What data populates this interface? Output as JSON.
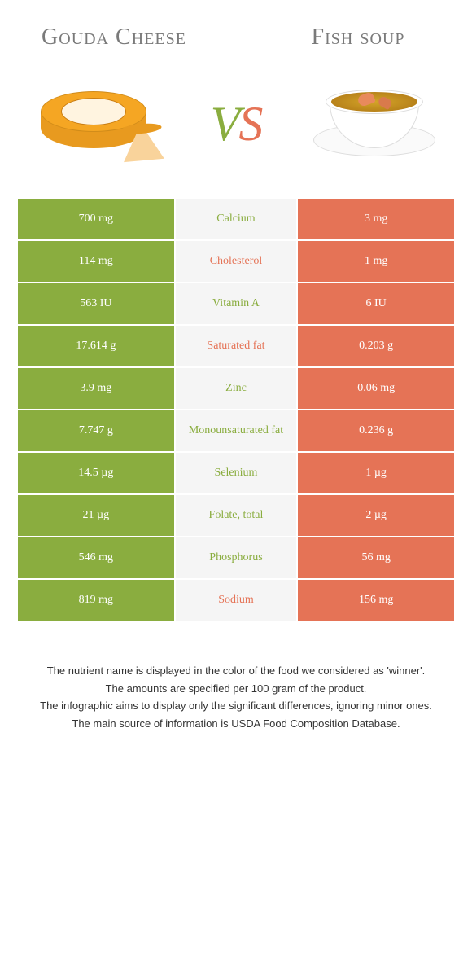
{
  "left": {
    "title": "Gouda Cheese",
    "color": "#8aad3f"
  },
  "right": {
    "title": "Fish soup",
    "color": "#e57356"
  },
  "vs": {
    "v": "V",
    "s": "S"
  },
  "nutrient_label_colors": {
    "left_wins": "#8aad3f",
    "right_wins": "#e57356"
  },
  "rows": [
    {
      "label": "Calcium",
      "left": "700 mg",
      "right": "3 mg",
      "winner": "left"
    },
    {
      "label": "Cholesterol",
      "left": "114 mg",
      "right": "1 mg",
      "winner": "right"
    },
    {
      "label": "Vitamin A",
      "left": "563 IU",
      "right": "6 IU",
      "winner": "left"
    },
    {
      "label": "Saturated fat",
      "left": "17.614 g",
      "right": "0.203 g",
      "winner": "right"
    },
    {
      "label": "Zinc",
      "left": "3.9 mg",
      "right": "0.06 mg",
      "winner": "left"
    },
    {
      "label": "Monounsaturated fat",
      "left": "7.747 g",
      "right": "0.236 g",
      "winner": "left"
    },
    {
      "label": "Selenium",
      "left": "14.5 µg",
      "right": "1 µg",
      "winner": "left"
    },
    {
      "label": "Folate, total",
      "left": "21 µg",
      "right": "2 µg",
      "winner": "left"
    },
    {
      "label": "Phosphorus",
      "left": "546 mg",
      "right": "56 mg",
      "winner": "left"
    },
    {
      "label": "Sodium",
      "left": "819 mg",
      "right": "156 mg",
      "winner": "right"
    }
  ],
  "footnotes": [
    "The nutrient name is displayed in the color of the food we considered as 'winner'.",
    "The amounts are specified per 100 gram of the product.",
    "The infographic aims to display only the significant differences, ignoring minor ones.",
    "The main source of information is USDA Food Composition Database."
  ]
}
